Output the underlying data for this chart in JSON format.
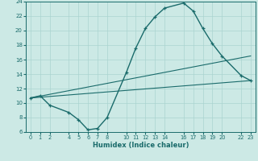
{
  "xlabel": "Humidex (Indice chaleur)",
  "ylabel": "",
  "bg_color": "#cce9e5",
  "line_color": "#1a6b6b",
  "grid_color": "#aad4d0",
  "xlim": [
    -0.5,
    23.5
  ],
  "ylim": [
    6,
    24
  ],
  "xticks": [
    0,
    1,
    2,
    4,
    5,
    6,
    7,
    8,
    10,
    11,
    12,
    13,
    14,
    16,
    17,
    18,
    19,
    20,
    22,
    23
  ],
  "yticks": [
    6,
    8,
    10,
    12,
    14,
    16,
    18,
    20,
    22,
    24
  ],
  "curve1_x": [
    0,
    1,
    2,
    4,
    5,
    6,
    7,
    8,
    10,
    11,
    12,
    13,
    14,
    16,
    17,
    18,
    19,
    20,
    22,
    23
  ],
  "curve1_y": [
    10.7,
    11.0,
    9.7,
    8.7,
    7.7,
    6.3,
    6.5,
    8.0,
    14.2,
    17.6,
    20.3,
    21.9,
    23.1,
    23.8,
    22.7,
    20.3,
    18.2,
    16.5,
    13.8,
    13.1
  ],
  "curve2_x": [
    0,
    23
  ],
  "curve2_y": [
    10.7,
    13.1
  ],
  "curve3_x": [
    0,
    23
  ],
  "curve3_y": [
    10.7,
    16.5
  ]
}
